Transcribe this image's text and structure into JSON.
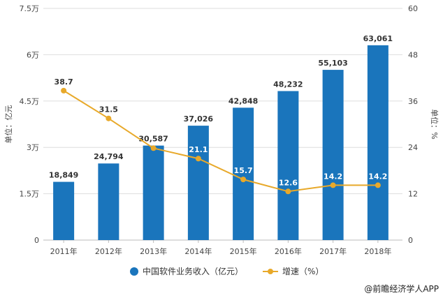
{
  "chart_data": {
    "type": "bar+line",
    "categories": [
      "2011年",
      "2012年",
      "2013年",
      "2014年",
      "2015年",
      "2016年",
      "2017年",
      "2018年"
    ],
    "series": [
      {
        "name": "中国软件业务收入（亿元）",
        "type": "bar",
        "axis": "left",
        "values": [
          18849,
          24794,
          30587,
          37026,
          42848,
          48232,
          55103,
          63061
        ],
        "labels": [
          "18,849",
          "24,794",
          "30,587",
          "37,026",
          "42,848",
          "48,232",
          "55,103",
          "63,061"
        ],
        "color": "#1A75BC"
      },
      {
        "name": "增速（%）",
        "type": "line",
        "axis": "right",
        "values": [
          38.7,
          31.5,
          23.8,
          21.1,
          15.7,
          12.6,
          14.2,
          14.2
        ],
        "labels": [
          "38.7",
          "31.5",
          "",
          "21.1",
          "15.7",
          "12.6",
          "14.2",
          "14.2"
        ],
        "color": "#E8A92A"
      }
    ],
    "yleft": {
      "label": "单位：亿元",
      "ylim": [
        0,
        75000
      ],
      "ticks": [
        0,
        15000,
        30000,
        45000,
        60000,
        75000
      ],
      "tick_labels": [
        "0",
        "1.5万",
        "3万",
        "4.5万",
        "6万",
        "7.5万"
      ]
    },
    "yright": {
      "label": "单位：%",
      "ylim": [
        0,
        60
      ],
      "ticks": [
        0,
        12,
        24,
        36,
        48,
        60
      ],
      "tick_labels": [
        "0",
        "12",
        "24",
        "36",
        "48",
        "60"
      ]
    },
    "grid": true,
    "legend": "bottom"
  },
  "credit": "@前瞻经济学人APP"
}
